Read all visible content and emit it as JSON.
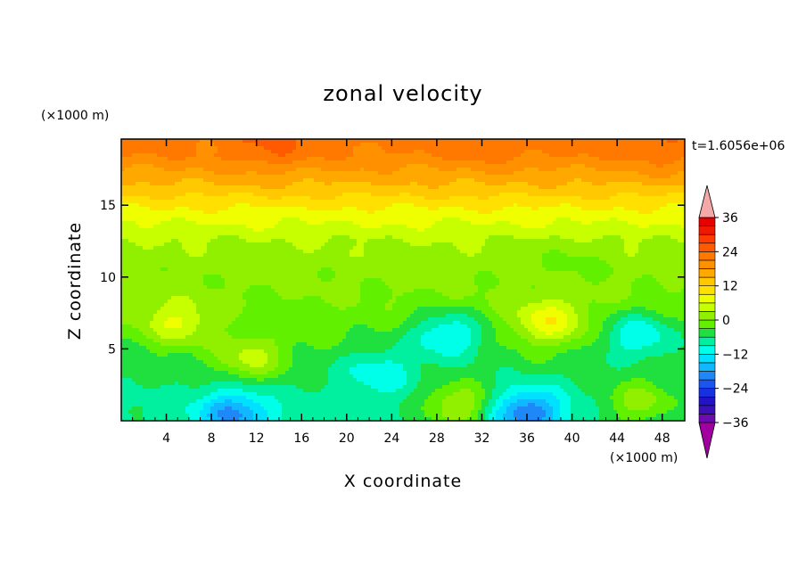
{
  "chart_data": {
    "type": "heatmap",
    "title": "zonal velocity",
    "xlabel": "X coordinate",
    "ylabel": "Z coordinate",
    "x_unit": "(×1000 m)",
    "y_unit": "(×1000 m)",
    "time_label": "t=1.6056e+06",
    "xlim": [
      0,
      50
    ],
    "ylim": [
      0,
      19.6
    ],
    "x_ticks": [
      4,
      8,
      12,
      16,
      20,
      24,
      28,
      32,
      36,
      40,
      44,
      48
    ],
    "y_ticks": [
      5,
      10,
      15
    ],
    "colorbar": {
      "levels": [
        -39,
        -36,
        -33,
        -30,
        -27,
        -24,
        -21,
        -18,
        -15,
        -12,
        -9,
        -6,
        -3,
        0,
        3,
        6,
        9,
        12,
        15,
        18,
        21,
        24,
        27,
        30,
        33,
        36,
        39
      ],
      "tick_labels": [
        "36",
        "24",
        "12",
        "0",
        "−12",
        "−24",
        "−36"
      ],
      "tick_values": [
        36,
        24,
        12,
        0,
        -12,
        -24,
        -36
      ],
      "colors": [
        "#a000a0",
        "#6a0cb0",
        "#3c10b8",
        "#2212c8",
        "#1830e0",
        "#1a55f0",
        "#1e88f8",
        "#10b8ff",
        "#00e0ff",
        "#00ffe8",
        "#00f0a0",
        "#20e040",
        "#60f000",
        "#90f000",
        "#c8ff00",
        "#f0ff00",
        "#ffe000",
        "#ffc800",
        "#ffa800",
        "#ff9000",
        "#ff7800",
        "#ff5a00",
        "#ff3c00",
        "#f01800",
        "#e80000",
        "#f4a8a8"
      ],
      "under_color": "#a000a0",
      "over_color": "#f4a8a8"
    },
    "background_profile": [
      {
        "z": 0.5,
        "u": -7
      },
      {
        "z": 2.5,
        "u": -6
      },
      {
        "z": 4.5,
        "u": -4
      },
      {
        "z": 6.5,
        "u": -2
      },
      {
        "z": 8.5,
        "u": 0
      },
      {
        "z": 10.5,
        "u": 1
      },
      {
        "z": 12.5,
        "u": 3
      },
      {
        "z": 14.5,
        "u": 8
      },
      {
        "z": 16.5,
        "u": 15
      },
      {
        "z": 18.5,
        "u": 21
      },
      {
        "z": 19.6,
        "u": 22
      }
    ],
    "anomalies": [
      {
        "x": 5,
        "z": 6.8,
        "u": 8
      },
      {
        "x": 11.5,
        "z": 4.3,
        "u": 8
      },
      {
        "x": 29,
        "z": 6,
        "u": -10
      },
      {
        "x": 38,
        "z": 6.8,
        "u": 10
      },
      {
        "x": 46,
        "z": 6,
        "u": -9
      },
      {
        "x": 30,
        "z": 1,
        "u": 10
      },
      {
        "x": 36,
        "z": 0.6,
        "u": -14
      },
      {
        "x": 10,
        "z": 0.5,
        "u": -12
      },
      {
        "x": 46,
        "z": 1.2,
        "u": 8
      },
      {
        "x": 23,
        "z": 3.5,
        "u": -6
      },
      {
        "x": 13,
        "z": 18.8,
        "u": 3
      },
      {
        "x": 33,
        "z": 19.2,
        "u": 2
      },
      {
        "x": 48,
        "z": 18.5,
        "u": 2
      },
      {
        "x": 40,
        "z": 11.2,
        "u": -2
      }
    ]
  }
}
